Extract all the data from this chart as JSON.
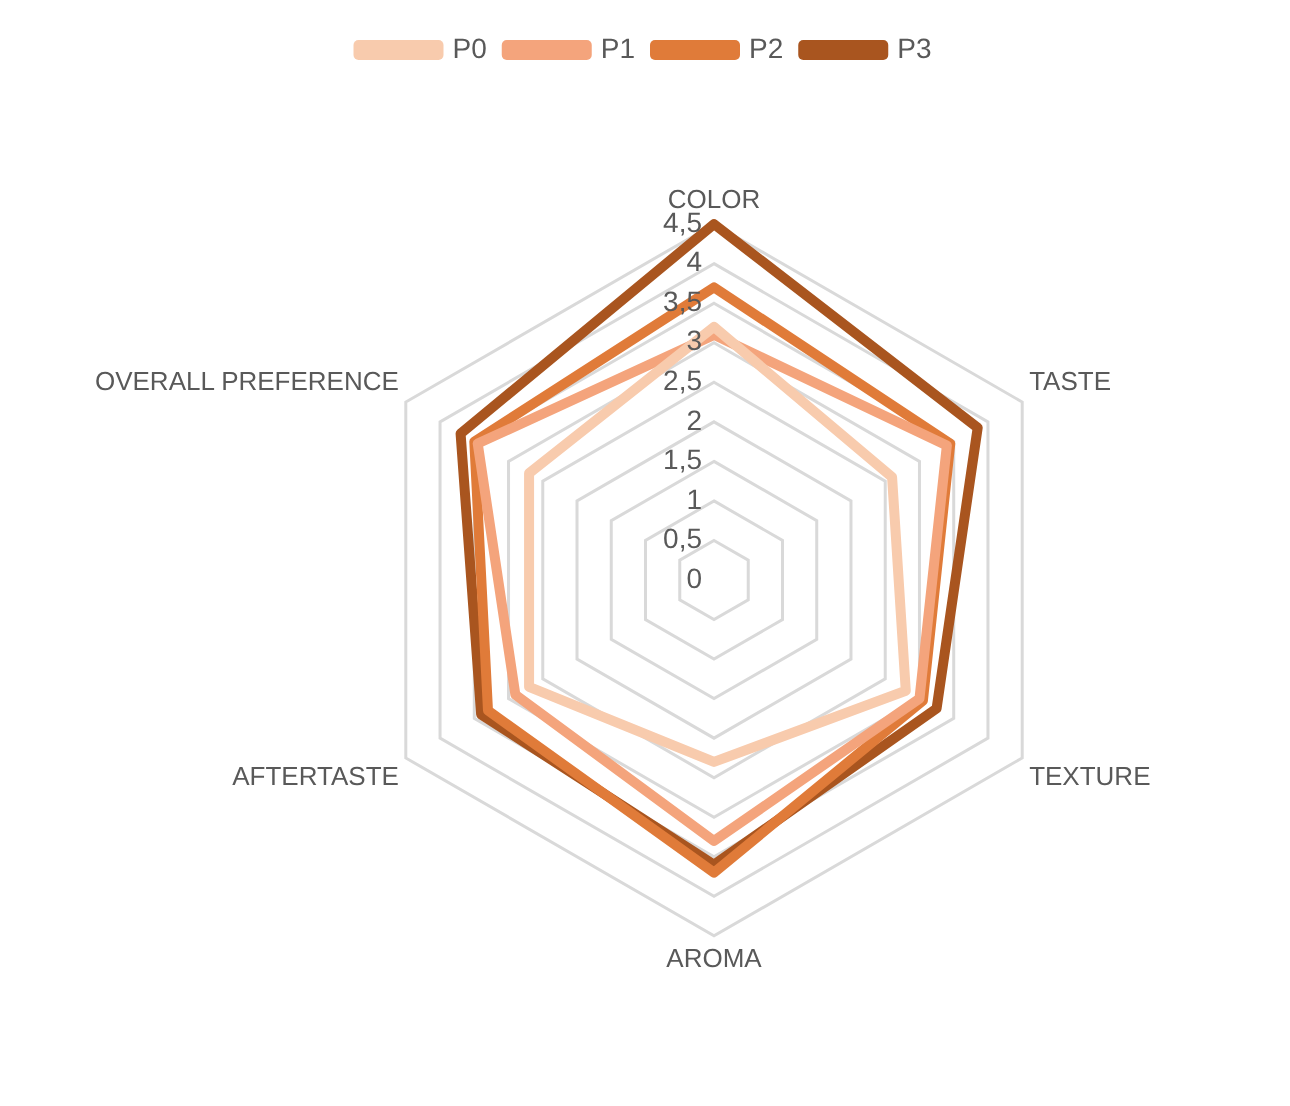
{
  "chart_data": {
    "type": "radar",
    "categories": [
      "COLOR",
      "TASTE",
      "TEXTURE",
      "AROMA",
      "AFTERTASTE",
      "OVERALL PREFERENCE"
    ],
    "series": [
      {
        "name": "P0",
        "color": "#f8cbad",
        "values": [
          3.2,
          2.6,
          2.8,
          2.3,
          2.7,
          2.7
        ]
      },
      {
        "name": "P1",
        "color": "#f4a47c",
        "values": [
          3.1,
          3.4,
          3.0,
          3.3,
          2.9,
          3.45
        ]
      },
      {
        "name": "P2",
        "color": "#e07b39",
        "values": [
          3.7,
          3.45,
          3.05,
          3.7,
          3.3,
          3.5
        ]
      },
      {
        "name": "P3",
        "color": "#a9551f",
        "values": [
          4.5,
          3.85,
          3.25,
          3.6,
          3.4,
          3.7
        ]
      }
    ],
    "ylim": [
      0,
      4.5
    ],
    "yticks": [
      0,
      {
        "value": 0.5,
        "label": "0,5"
      },
      1,
      {
        "value": 1.5,
        "label": "1,5"
      },
      2,
      {
        "value": 2.5,
        "label": "2,5"
      },
      3,
      {
        "value": 3.5,
        "label": "3,5"
      },
      4,
      {
        "value": 4.5,
        "label": "4,5"
      }
    ],
    "grid": true,
    "legend": "top",
    "marker": "none",
    "line_style": "solid"
  }
}
